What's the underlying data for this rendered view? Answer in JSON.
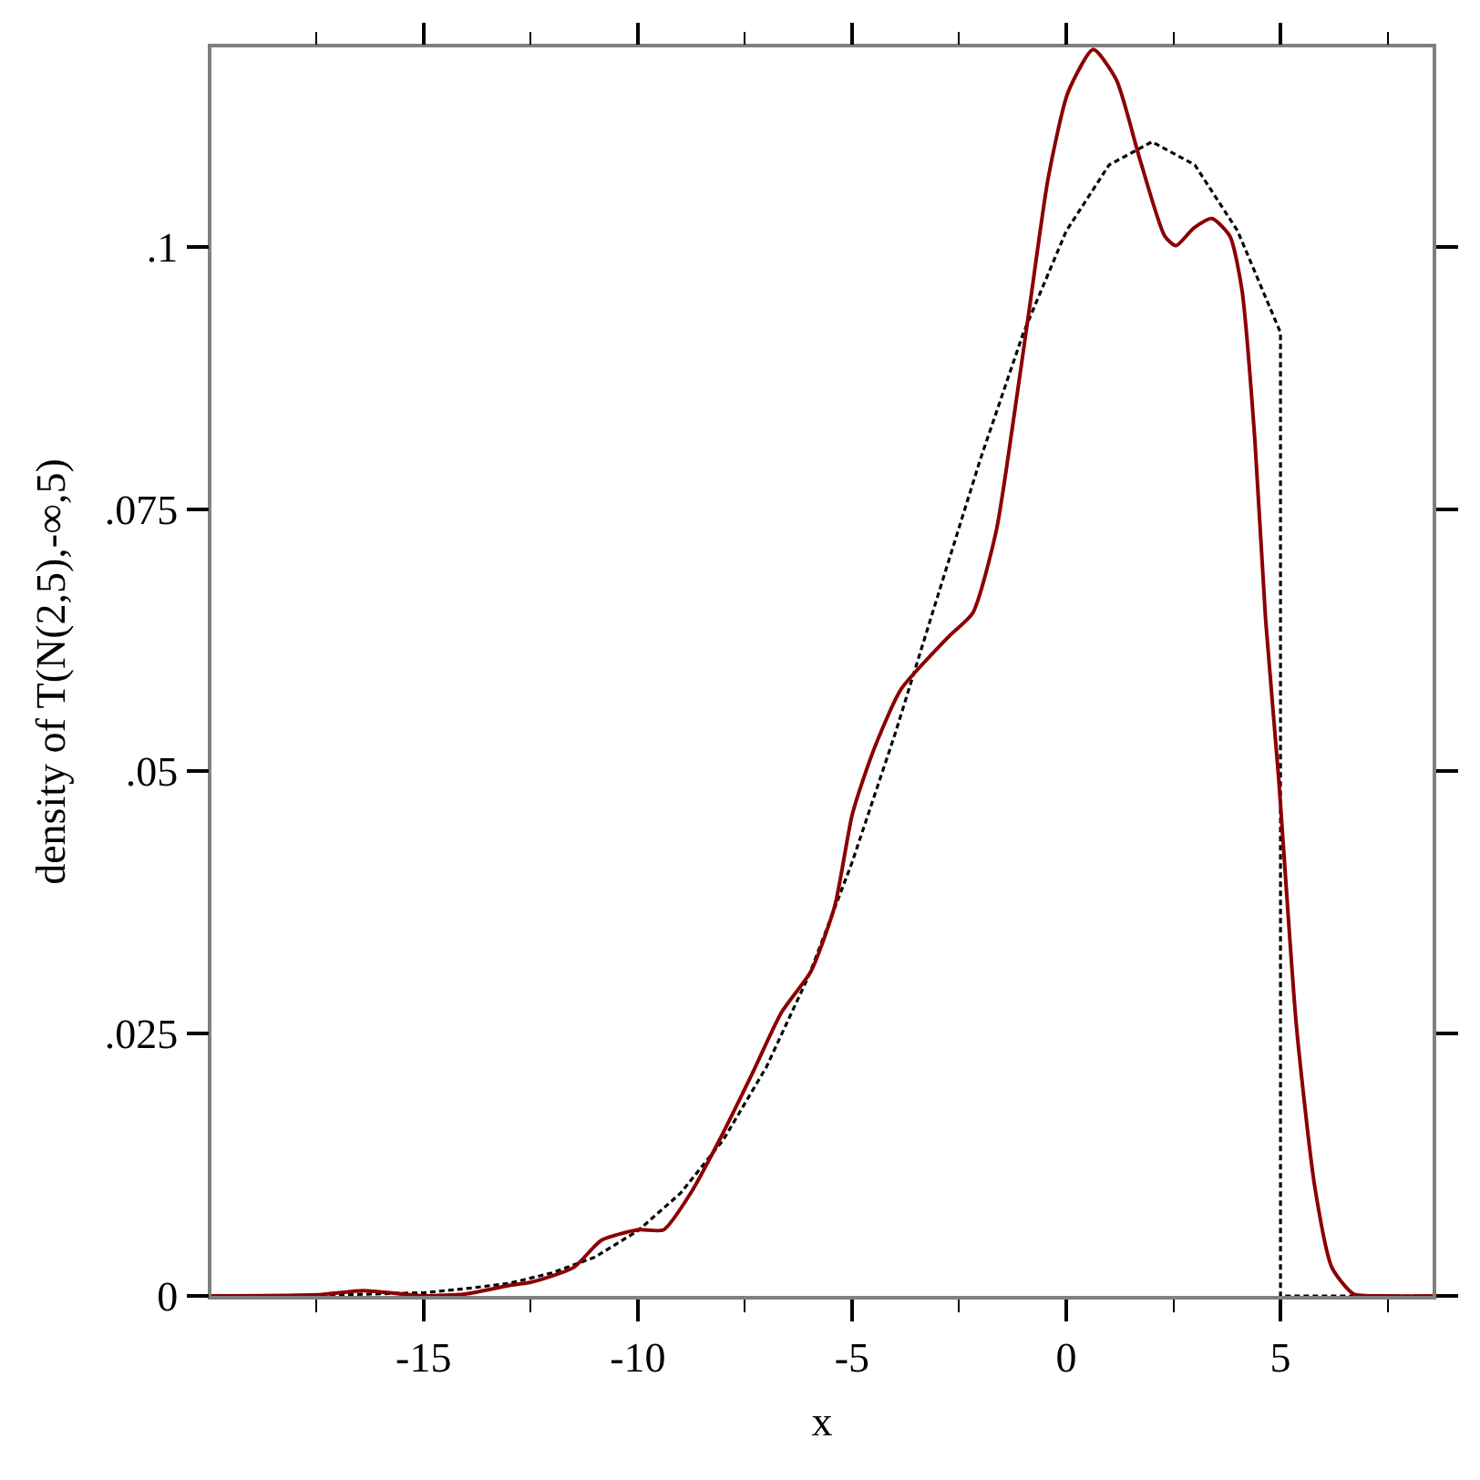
{
  "chart_data": {
    "type": "line",
    "xlabel": "x",
    "ylabel": "density of T(N(2,5),-∞,5)",
    "xlim": [
      -19.95,
      8.55
    ],
    "ylim": [
      0,
      0.119
    ],
    "xticks": [
      {
        "value": -17.5,
        "label": null
      },
      -15,
      {
        "value": -12.5,
        "label": null
      },
      -10,
      {
        "value": -7.5,
        "label": null
      },
      -5,
      {
        "value": -2.5,
        "label": null
      },
      0,
      {
        "value": 2.5,
        "label": null
      },
      5,
      {
        "value": 7.5,
        "label": null
      }
    ],
    "yticks": [
      0,
      {
        "value": 0.025,
        "label": ".025"
      },
      {
        "value": 0.05,
        "label": ".05"
      },
      {
        "value": 0.075,
        "label": ".075"
      },
      {
        "value": 0.1,
        "label": ".1"
      }
    ],
    "marker": "none",
    "series": [
      {
        "color": "#000000",
        "line_style": "dashed",
        "x": [
          -19.95,
          -18,
          -16,
          -15,
          -14,
          -13,
          -12,
          -11,
          -10,
          -9,
          -8,
          -7,
          -6,
          -5,
          -4,
          -3,
          -2,
          -1,
          0,
          1,
          2,
          3,
          4,
          5,
          5,
          8.55
        ],
        "values": [
          0.0,
          0.0,
          0.0002,
          0.0003,
          0.0007,
          0.0012,
          0.0022,
          0.0037,
          0.0062,
          0.0098,
          0.0149,
          0.0218,
          0.0306,
          0.0413,
          0.0535,
          0.0667,
          0.0798,
          0.0918,
          0.1015,
          0.1078,
          0.11,
          0.1078,
          0.1015,
          0.0918,
          0,
          0
        ]
      },
      {
        "color": "#8b0000",
        "line_style": "solid",
        "x": [
          -19.95,
          -17.5,
          -16.4,
          -15,
          -14,
          -13,
          -12.5,
          -11.5,
          -10.85,
          -10,
          -9.4,
          -8.75,
          -8.05,
          -7.35,
          -6.65,
          -5.95,
          -5.4,
          -5,
          -4.7,
          -4.4,
          -3.86,
          -2.73,
          -2.18,
          -1.63,
          -1.2,
          -0.84,
          -0.42,
          0.04,
          0.63,
          1.17,
          1.72,
          2.3,
          2.56,
          2.98,
          3.4,
          3.82,
          4.1,
          4.4,
          4.65,
          4.95,
          5.37,
          5.8,
          6.2,
          6.7,
          7.5,
          8.55
        ],
        "values": [
          0,
          0.0001,
          0.0005,
          0,
          0.0002,
          0.001,
          0.0013,
          0.0027,
          0.0053,
          0.0063,
          0.0063,
          0.0099,
          0.0152,
          0.021,
          0.027,
          0.031,
          0.0372,
          0.0458,
          0.0497,
          0.053,
          0.0578,
          0.0629,
          0.0651,
          0.073,
          0.0844,
          0.0947,
          0.1066,
          0.1147,
          0.1188,
          0.1159,
          0.1083,
          0.101,
          0.1001,
          0.1018,
          0.1027,
          0.101,
          0.0959,
          0.0817,
          0.0646,
          0.0497,
          0.0258,
          0.0104,
          0.0027,
          0.0002,
          0,
          0
        ]
      }
    ]
  }
}
